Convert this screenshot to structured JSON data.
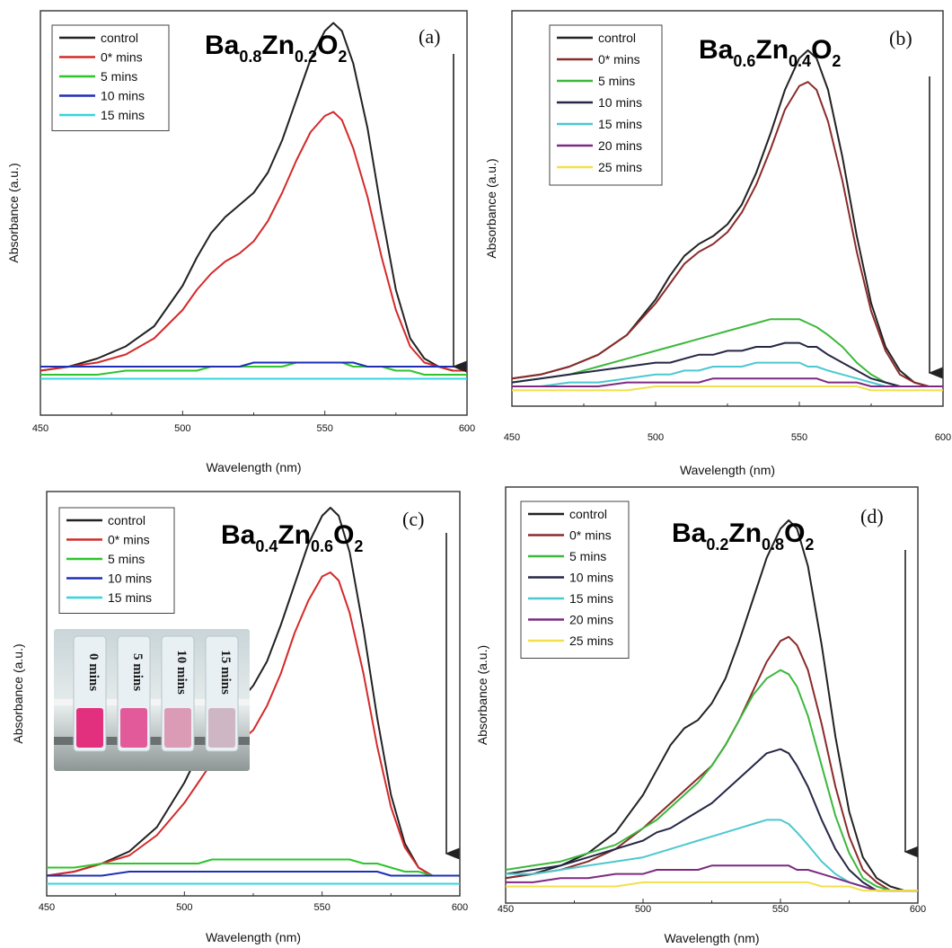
{
  "chart_data": [
    {
      "type": "line",
      "panel_label": "(a)",
      "formula": {
        "base1": "Ba",
        "sub1": "0.8",
        "base2": "Zn",
        "sub2": "0.2",
        "base3": "O",
        "sub3": "2"
      },
      "xlabel": "Wavelength (nm)",
      "ylabel": "Absorbance (a.u.)",
      "xlim": [
        450,
        600
      ],
      "ylim": [
        0,
        1.0
      ],
      "xticks": [
        "450",
        "500",
        "550",
        "600"
      ],
      "legend_position": "top-left",
      "x": [
        450,
        460,
        470,
        480,
        490,
        500,
        505,
        510,
        515,
        520,
        525,
        530,
        535,
        540,
        545,
        550,
        553,
        556,
        560,
        565,
        570,
        575,
        580,
        585,
        590,
        595,
        600
      ],
      "series": [
        {
          "name": "control",
          "color": "#222222",
          "values": [
            0.11,
            0.12,
            0.14,
            0.17,
            0.22,
            0.32,
            0.39,
            0.45,
            0.49,
            0.52,
            0.55,
            0.6,
            0.68,
            0.78,
            0.88,
            0.95,
            0.97,
            0.95,
            0.87,
            0.71,
            0.5,
            0.31,
            0.19,
            0.14,
            0.12,
            0.11,
            0.11
          ]
        },
        {
          "name": "0* mins",
          "color": "#d42a2a",
          "values": [
            0.11,
            0.12,
            0.13,
            0.15,
            0.19,
            0.26,
            0.31,
            0.35,
            0.38,
            0.4,
            0.43,
            0.48,
            0.55,
            0.63,
            0.7,
            0.74,
            0.75,
            0.73,
            0.66,
            0.54,
            0.39,
            0.26,
            0.17,
            0.13,
            0.12,
            0.11,
            0.11
          ]
        },
        {
          "name": "5 mins",
          "color": "#2ec42e",
          "values": [
            0.1,
            0.1,
            0.1,
            0.11,
            0.11,
            0.11,
            0.11,
            0.12,
            0.12,
            0.12,
            0.12,
            0.12,
            0.12,
            0.13,
            0.13,
            0.13,
            0.13,
            0.13,
            0.12,
            0.12,
            0.12,
            0.11,
            0.11,
            0.1,
            0.1,
            0.1,
            0.1
          ]
        },
        {
          "name": "10 mins",
          "color": "#1f2fb5",
          "values": [
            0.12,
            0.12,
            0.12,
            0.12,
            0.12,
            0.12,
            0.12,
            0.12,
            0.12,
            0.12,
            0.13,
            0.13,
            0.13,
            0.13,
            0.13,
            0.13,
            0.13,
            0.13,
            0.13,
            0.12,
            0.12,
            0.12,
            0.12,
            0.12,
            0.12,
            0.12,
            0.12
          ]
        },
        {
          "name": "15 mins",
          "color": "#34d4e0",
          "values": [
            0.09,
            0.09,
            0.09,
            0.09,
            0.09,
            0.09,
            0.09,
            0.09,
            0.09,
            0.09,
            0.09,
            0.09,
            0.09,
            0.09,
            0.09,
            0.09,
            0.09,
            0.09,
            0.09,
            0.09,
            0.09,
            0.09,
            0.09,
            0.09,
            0.09,
            0.09,
            0.09
          ]
        }
      ]
    },
    {
      "type": "line",
      "panel_label": "(b)",
      "formula": {
        "base1": "Ba",
        "sub1": "0.6",
        "base2": "Zn",
        "sub2": "0.4",
        "base3": "O",
        "sub3": "2"
      },
      "xlabel": "Wavelength (nm)",
      "ylabel": "Absorbance (a.u.)",
      "xlim": [
        450,
        600
      ],
      "ylim": [
        0,
        1.0
      ],
      "xticks": [
        "450",
        "500",
        "550",
        "600"
      ],
      "legend_position": "top-left",
      "x": [
        450,
        460,
        470,
        480,
        490,
        500,
        505,
        510,
        515,
        520,
        525,
        530,
        535,
        540,
        545,
        550,
        553,
        556,
        560,
        565,
        570,
        575,
        580,
        585,
        590,
        595,
        600
      ],
      "series": [
        {
          "name": "control",
          "color": "#222222",
          "values": [
            0.07,
            0.08,
            0.1,
            0.13,
            0.18,
            0.27,
            0.33,
            0.38,
            0.41,
            0.43,
            0.46,
            0.51,
            0.59,
            0.69,
            0.8,
            0.88,
            0.9,
            0.88,
            0.8,
            0.63,
            0.43,
            0.26,
            0.15,
            0.09,
            0.06,
            0.05,
            0.05
          ]
        },
        {
          "name": "0* mins",
          "color": "#8b2b2b",
          "values": [
            0.07,
            0.08,
            0.1,
            0.13,
            0.18,
            0.26,
            0.31,
            0.36,
            0.39,
            0.41,
            0.44,
            0.49,
            0.56,
            0.65,
            0.75,
            0.81,
            0.82,
            0.8,
            0.72,
            0.57,
            0.39,
            0.24,
            0.14,
            0.08,
            0.06,
            0.05,
            0.05
          ]
        },
        {
          "name": "5 mins",
          "color": "#3cb83c",
          "values": [
            0.06,
            0.07,
            0.08,
            0.1,
            0.12,
            0.14,
            0.15,
            0.16,
            0.17,
            0.18,
            0.19,
            0.2,
            0.21,
            0.22,
            0.22,
            0.22,
            0.21,
            0.2,
            0.18,
            0.15,
            0.11,
            0.08,
            0.06,
            0.05,
            0.05,
            0.05,
            0.05
          ]
        },
        {
          "name": "10 mins",
          "color": "#252745",
          "values": [
            0.06,
            0.07,
            0.08,
            0.09,
            0.1,
            0.11,
            0.11,
            0.12,
            0.13,
            0.13,
            0.14,
            0.14,
            0.15,
            0.15,
            0.16,
            0.16,
            0.15,
            0.15,
            0.13,
            0.11,
            0.09,
            0.07,
            0.06,
            0.05,
            0.05,
            0.05,
            0.05
          ]
        },
        {
          "name": "15 mins",
          "color": "#4cc8d0",
          "values": [
            0.05,
            0.05,
            0.06,
            0.06,
            0.07,
            0.08,
            0.08,
            0.09,
            0.09,
            0.1,
            0.1,
            0.1,
            0.11,
            0.11,
            0.11,
            0.11,
            0.1,
            0.1,
            0.09,
            0.08,
            0.07,
            0.06,
            0.05,
            0.05,
            0.05,
            0.05,
            0.05
          ]
        },
        {
          "name": "20 mins",
          "color": "#7d2a82",
          "values": [
            0.05,
            0.05,
            0.05,
            0.05,
            0.06,
            0.06,
            0.06,
            0.06,
            0.06,
            0.07,
            0.07,
            0.07,
            0.07,
            0.07,
            0.07,
            0.07,
            0.07,
            0.07,
            0.06,
            0.06,
            0.06,
            0.05,
            0.05,
            0.05,
            0.05,
            0.05,
            0.05
          ]
        },
        {
          "name": "25 mins",
          "color": "#f2e04a",
          "values": [
            0.04,
            0.04,
            0.04,
            0.04,
            0.04,
            0.05,
            0.05,
            0.05,
            0.05,
            0.05,
            0.05,
            0.05,
            0.05,
            0.05,
            0.05,
            0.05,
            0.05,
            0.05,
            0.05,
            0.05,
            0.05,
            0.04,
            0.04,
            0.04,
            0.04,
            0.04,
            0.04
          ]
        }
      ]
    },
    {
      "type": "line",
      "panel_label": "(c)",
      "formula": {
        "base1": "Ba",
        "sub1": "0.4",
        "base2": "Zn",
        "sub2": "0.6",
        "base3": "O",
        "sub3": "2"
      },
      "xlabel": "Wavelength (nm)",
      "ylabel": "Absorbance (a.u.)",
      "xlim": [
        450,
        600
      ],
      "ylim": [
        0,
        1.0
      ],
      "xticks": [
        "450",
        "500",
        "550",
        "600"
      ],
      "legend_position": "top-left",
      "inset_labels": [
        "0 mins",
        "5 mins",
        "10 mins",
        "15 mins"
      ],
      "x": [
        450,
        460,
        470,
        480,
        490,
        500,
        505,
        510,
        515,
        520,
        525,
        530,
        535,
        540,
        545,
        550,
        553,
        556,
        560,
        565,
        570,
        575,
        580,
        585,
        590,
        595,
        600
      ],
      "series": [
        {
          "name": "control",
          "color": "#222222",
          "values": [
            0.05,
            0.06,
            0.08,
            0.11,
            0.17,
            0.28,
            0.35,
            0.41,
            0.45,
            0.48,
            0.52,
            0.58,
            0.67,
            0.77,
            0.87,
            0.94,
            0.96,
            0.94,
            0.85,
            0.66,
            0.44,
            0.25,
            0.13,
            0.07,
            0.05,
            0.05,
            0.05
          ]
        },
        {
          "name": "0* mins",
          "color": "#d42a2a",
          "values": [
            0.05,
            0.06,
            0.08,
            0.1,
            0.15,
            0.23,
            0.28,
            0.33,
            0.36,
            0.38,
            0.41,
            0.47,
            0.55,
            0.65,
            0.73,
            0.79,
            0.8,
            0.78,
            0.7,
            0.55,
            0.37,
            0.22,
            0.12,
            0.07,
            0.05,
            0.05,
            0.05
          ]
        },
        {
          "name": "5 mins",
          "color": "#2ec42e",
          "values": [
            0.07,
            0.07,
            0.08,
            0.08,
            0.08,
            0.08,
            0.08,
            0.09,
            0.09,
            0.09,
            0.09,
            0.09,
            0.09,
            0.09,
            0.09,
            0.09,
            0.09,
            0.09,
            0.09,
            0.08,
            0.08,
            0.07,
            0.06,
            0.06,
            0.05,
            0.05,
            0.05
          ]
        },
        {
          "name": "10 mins",
          "color": "#1f2fb5",
          "values": [
            0.05,
            0.05,
            0.05,
            0.06,
            0.06,
            0.06,
            0.06,
            0.06,
            0.06,
            0.06,
            0.06,
            0.06,
            0.06,
            0.06,
            0.06,
            0.06,
            0.06,
            0.06,
            0.06,
            0.06,
            0.06,
            0.05,
            0.05,
            0.05,
            0.05,
            0.05,
            0.05
          ]
        },
        {
          "name": "15 mins",
          "color": "#34d4e0",
          "values": [
            0.03,
            0.03,
            0.03,
            0.03,
            0.03,
            0.03,
            0.03,
            0.03,
            0.03,
            0.03,
            0.03,
            0.03,
            0.03,
            0.03,
            0.03,
            0.03,
            0.03,
            0.03,
            0.03,
            0.03,
            0.03,
            0.03,
            0.03,
            0.03,
            0.03,
            0.03,
            0.03
          ]
        }
      ]
    },
    {
      "type": "line",
      "panel_label": "(d)",
      "formula": {
        "base1": "Ba",
        "sub1": "0.2",
        "base2": "Zn",
        "sub2": "0.8",
        "base3": "O",
        "sub3": "2"
      },
      "xlabel": "Wavelength (nm)",
      "ylabel": "Absorbance (a.u.)",
      "xlim": [
        450,
        600
      ],
      "ylim": [
        0,
        1.0
      ],
      "xticks": [
        "450",
        "500",
        "550",
        "600"
      ],
      "legend_position": "top-left",
      "x": [
        450,
        460,
        470,
        480,
        490,
        500,
        505,
        510,
        515,
        520,
        525,
        530,
        535,
        540,
        545,
        550,
        553,
        556,
        560,
        565,
        570,
        575,
        580,
        585,
        590,
        595,
        600
      ],
      "series": [
        {
          "name": "control",
          "color": "#222222",
          "values": [
            0.06,
            0.07,
            0.09,
            0.12,
            0.17,
            0.26,
            0.32,
            0.38,
            0.42,
            0.44,
            0.48,
            0.54,
            0.63,
            0.73,
            0.83,
            0.9,
            0.92,
            0.9,
            0.81,
            0.62,
            0.4,
            0.22,
            0.11,
            0.06,
            0.04,
            0.03,
            0.03
          ]
        },
        {
          "name": "0* mins",
          "color": "#8b2b2b",
          "values": [
            0.06,
            0.07,
            0.08,
            0.1,
            0.13,
            0.18,
            0.21,
            0.24,
            0.27,
            0.3,
            0.33,
            0.38,
            0.44,
            0.51,
            0.58,
            0.63,
            0.64,
            0.62,
            0.56,
            0.43,
            0.28,
            0.16,
            0.08,
            0.05,
            0.03,
            0.03,
            0.03
          ]
        },
        {
          "name": "5 mins",
          "color": "#3cb83c",
          "values": [
            0.08,
            0.09,
            0.1,
            0.12,
            0.14,
            0.18,
            0.2,
            0.23,
            0.26,
            0.29,
            0.33,
            0.38,
            0.44,
            0.5,
            0.54,
            0.56,
            0.55,
            0.52,
            0.45,
            0.33,
            0.21,
            0.12,
            0.06,
            0.04,
            0.03,
            0.03,
            0.03
          ]
        },
        {
          "name": "10 mins",
          "color": "#252745",
          "values": [
            0.07,
            0.08,
            0.09,
            0.11,
            0.13,
            0.15,
            0.17,
            0.18,
            0.2,
            0.22,
            0.24,
            0.27,
            0.3,
            0.33,
            0.36,
            0.37,
            0.36,
            0.33,
            0.28,
            0.2,
            0.13,
            0.08,
            0.05,
            0.03,
            0.03,
            0.03,
            0.03
          ]
        },
        {
          "name": "15 mins",
          "color": "#4cc8d0",
          "values": [
            0.07,
            0.07,
            0.08,
            0.09,
            0.1,
            0.11,
            0.12,
            0.13,
            0.14,
            0.15,
            0.16,
            0.17,
            0.18,
            0.19,
            0.2,
            0.2,
            0.19,
            0.17,
            0.14,
            0.1,
            0.07,
            0.05,
            0.04,
            0.03,
            0.03,
            0.03,
            0.03
          ]
        },
        {
          "name": "20 mins",
          "color": "#7d2a82",
          "values": [
            0.05,
            0.05,
            0.06,
            0.06,
            0.07,
            0.07,
            0.08,
            0.08,
            0.08,
            0.08,
            0.09,
            0.09,
            0.09,
            0.09,
            0.09,
            0.09,
            0.09,
            0.08,
            0.08,
            0.07,
            0.06,
            0.05,
            0.04,
            0.03,
            0.03,
            0.03,
            0.03
          ]
        },
        {
          "name": "25 mins",
          "color": "#f2e04a",
          "values": [
            0.04,
            0.04,
            0.04,
            0.04,
            0.04,
            0.05,
            0.05,
            0.05,
            0.05,
            0.05,
            0.05,
            0.05,
            0.05,
            0.05,
            0.05,
            0.05,
            0.05,
            0.05,
            0.05,
            0.04,
            0.04,
            0.04,
            0.03,
            0.03,
            0.03,
            0.03,
            0.03
          ]
        }
      ]
    }
  ]
}
